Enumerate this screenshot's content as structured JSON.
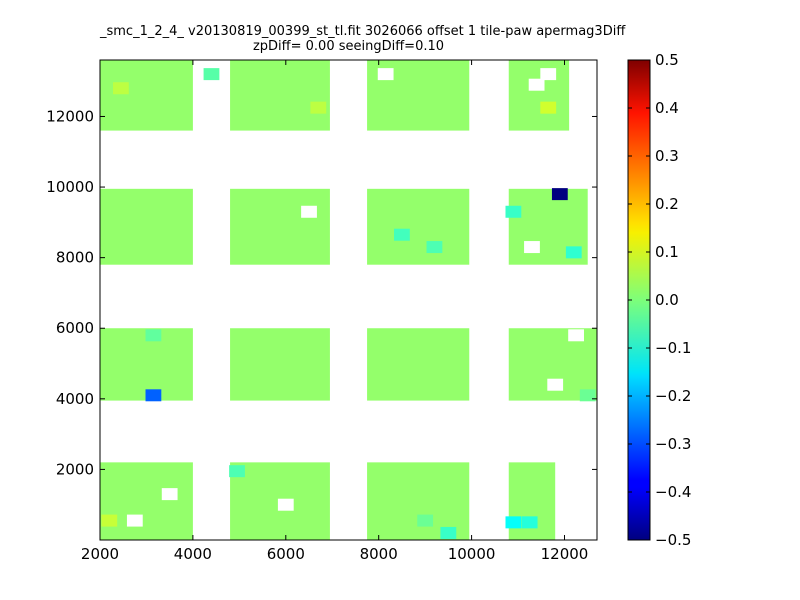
{
  "chart_data": {
    "type": "heatmap",
    "title": "_smc_1_2_4_ v20130819_00399_st_tl.fit 3026066 offset 1 tile-paw apermag3Diff",
    "subtitle": "zpDiff= 0.00 seeingDiff=0.10",
    "xlabel": "",
    "ylabel": "",
    "xlim": [
      2000,
      12700
    ],
    "ylim": [
      0,
      13600
    ],
    "x_ticks": [
      2000,
      4000,
      6000,
      8000,
      10000,
      12000
    ],
    "y_ticks": [
      2000,
      4000,
      6000,
      8000,
      10000,
      12000
    ],
    "x_tick_labels": [
      "2000",
      "4000",
      "6000",
      "8000",
      "10000",
      "12000"
    ],
    "y_tick_labels": [
      "2000",
      "4000",
      "6000",
      "8000",
      "10000",
      "12000"
    ],
    "colorbar": {
      "colormap": "jet",
      "vmin": -0.5,
      "vmax": 0.5,
      "ticks": [
        0.5,
        0.4,
        0.3,
        0.2,
        0.1,
        0.0,
        -0.1,
        -0.2,
        -0.3,
        -0.4,
        -0.5
      ],
      "tick_labels": [
        "0.5",
        "0.4",
        "0.3",
        "0.2",
        "0.1",
        "0.0",
        "−0.1",
        "−0.2",
        "−0.3",
        "−0.4",
        "−0.5"
      ]
    },
    "cell_size": 340,
    "background_value": 0.02,
    "regions": [
      {
        "x": [
          2000,
          4000
        ],
        "y": [
          11600,
          13600
        ]
      },
      {
        "x": [
          4800,
          6950
        ],
        "y": [
          11600,
          13600
        ]
      },
      {
        "x": [
          7750,
          9950
        ],
        "y": [
          11600,
          13600
        ]
      },
      {
        "x": [
          10800,
          12100
        ],
        "y": [
          11600,
          13600
        ]
      },
      {
        "x": [
          2000,
          4000
        ],
        "y": [
          7800,
          9950
        ]
      },
      {
        "x": [
          4800,
          6950
        ],
        "y": [
          7800,
          9950
        ]
      },
      {
        "x": [
          7750,
          9950
        ],
        "y": [
          7800,
          9950
        ]
      },
      {
        "x": [
          10800,
          12500
        ],
        "y": [
          7800,
          9950
        ]
      },
      {
        "x": [
          2000,
          4000
        ],
        "y": [
          3950,
          6000
        ]
      },
      {
        "x": [
          4800,
          6950
        ],
        "y": [
          3950,
          6000
        ]
      },
      {
        "x": [
          7750,
          9950
        ],
        "y": [
          3950,
          6000
        ]
      },
      {
        "x": [
          10800,
          12700
        ],
        "y": [
          3950,
          6000
        ]
      },
      {
        "x": [
          2000,
          4000
        ],
        "y": [
          0,
          2200
        ]
      },
      {
        "x": [
          4800,
          6950
        ],
        "y": [
          0,
          2200
        ]
      },
      {
        "x": [
          7750,
          9950
        ],
        "y": [
          0,
          2200
        ]
      },
      {
        "x": [
          10800,
          11800
        ],
        "y": [
          0,
          2200
        ]
      }
    ],
    "cells": [
      {
        "x": 11900,
        "y": 9800,
        "value": -0.5
      },
      {
        "x": 3150,
        "y": 4100,
        "value": -0.28
      },
      {
        "x": 10900,
        "y": 500,
        "value": -0.12
      },
      {
        "x": 11250,
        "y": 500,
        "value": -0.09
      },
      {
        "x": 12200,
        "y": 8150,
        "value": -0.08
      },
      {
        "x": 10900,
        "y": 9300,
        "value": -0.07
      },
      {
        "x": 8500,
        "y": 8650,
        "value": -0.06
      },
      {
        "x": 9200,
        "y": 8300,
        "value": -0.05
      },
      {
        "x": 9500,
        "y": 200,
        "value": -0.07
      },
      {
        "x": 4950,
        "y": 1950,
        "value": -0.05
      },
      {
        "x": 4400,
        "y": 13200,
        "value": -0.04
      },
      {
        "x": 3150,
        "y": 5800,
        "value": -0.03
      },
      {
        "x": 12500,
        "y": 4100,
        "value": -0.02
      },
      {
        "x": 9000,
        "y": 550,
        "value": -0.02
      },
      {
        "x": 6700,
        "y": 12250,
        "value": 0.06
      },
      {
        "x": 11650,
        "y": 12250,
        "value": 0.08
      },
      {
        "x": 2200,
        "y": 550,
        "value": 0.07
      },
      {
        "x": 2450,
        "y": 12800,
        "value": 0.06
      }
    ],
    "blank_cells": [
      {
        "x": 2750,
        "y": 550
      },
      {
        "x": 3500,
        "y": 1300
      },
      {
        "x": 6000,
        "y": 1000
      },
      {
        "x": 6500,
        "y": 9300
      },
      {
        "x": 11300,
        "y": 8300
      },
      {
        "x": 11800,
        "y": 4400
      },
      {
        "x": 12250,
        "y": 5800
      },
      {
        "x": 11650,
        "y": 13200
      },
      {
        "x": 8150,
        "y": 13200
      },
      {
        "x": 11400,
        "y": 12900
      }
    ]
  }
}
